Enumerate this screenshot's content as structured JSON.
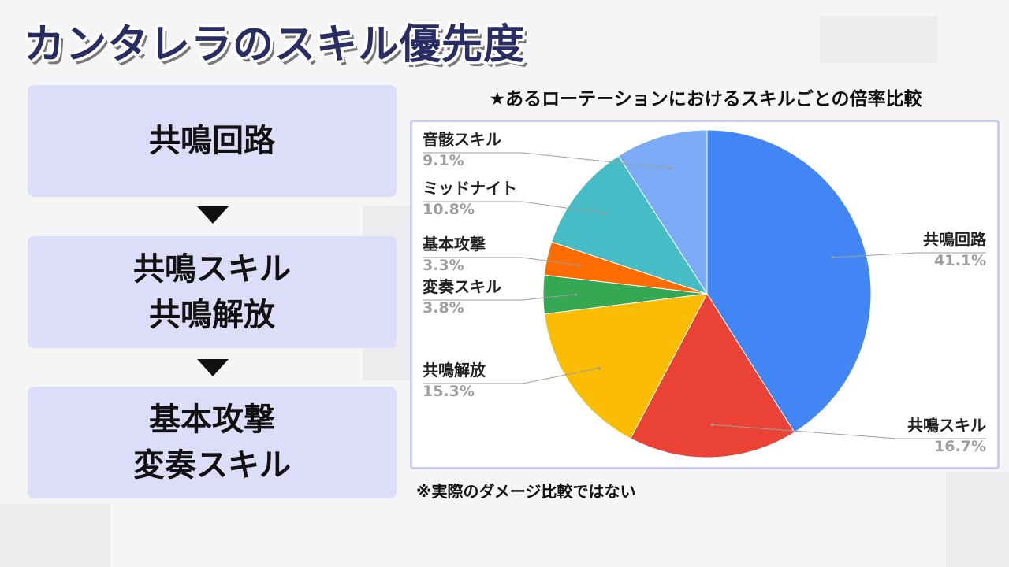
{
  "title": "カンタレラのスキル優先度",
  "priority": {
    "steps": [
      {
        "lines": [
          "共鳴回路"
        ]
      },
      {
        "lines": [
          "共鳴スキル",
          "共鳴解放"
        ]
      },
      {
        "lines": [
          "基本攻撃",
          "変奏スキル"
        ]
      }
    ]
  },
  "chart_heading": "★あるローテーションにおけるスキルごとの倍率比較",
  "note": "※実際のダメージ比較ではない",
  "chart_data": {
    "type": "pie",
    "title": "",
    "slices": [
      {
        "label": "共鳴回路",
        "value": 41.1,
        "display": "41.1%",
        "color": "#4285f4"
      },
      {
        "label": "共鳴スキル",
        "value": 16.7,
        "display": "16.7%",
        "color": "#ea4335"
      },
      {
        "label": "共鳴解放",
        "value": 15.3,
        "display": "15.3%",
        "color": "#fbbc04"
      },
      {
        "label": "変奏スキル",
        "value": 3.8,
        "display": "3.8%",
        "color": "#34a853"
      },
      {
        "label": "基本攻撃",
        "value": 3.3,
        "display": "3.3%",
        "color": "#ff6d01"
      },
      {
        "label": "ミッドナイト",
        "value": 10.8,
        "display": "10.8%",
        "color": "#46bdc6"
      },
      {
        "label": "音骸スキル",
        "value": 9.1,
        "display": "9.1%",
        "color": "#7baaf7"
      }
    ],
    "start_angle": "12 o'clock",
    "direction": "clockwise",
    "legend": "callout labels"
  }
}
